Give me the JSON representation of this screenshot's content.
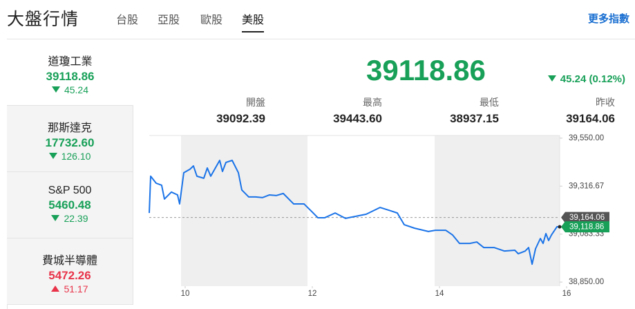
{
  "header": {
    "title": "大盤行情",
    "tabs": [
      "台股",
      "亞股",
      "歐股",
      "美股"
    ],
    "active_tab": 3,
    "more": "更多指數"
  },
  "indices": [
    {
      "name": "道瓊工業",
      "price": "39118.86",
      "change": "45.24",
      "direction": "down"
    },
    {
      "name": "那斯達克",
      "price": "17732.60",
      "change": "126.10",
      "direction": "down"
    },
    {
      "name": "S&P 500",
      "price": "5460.48",
      "change": "22.39",
      "direction": "down"
    },
    {
      "name": "費城半導體",
      "price": "5472.26",
      "change": "51.17",
      "direction": "up"
    }
  ],
  "active_index": 0,
  "quote": {
    "price": "39118.86",
    "change": "45.24 (0.12%)",
    "direction": "down",
    "stats": [
      {
        "label": "開盤",
        "value": "39092.39"
      },
      {
        "label": "最高",
        "value": "39443.60"
      },
      {
        "label": "最低",
        "value": "38937.15"
      },
      {
        "label": "昨收",
        "value": "39164.06"
      }
    ]
  },
  "chart_data": {
    "type": "line",
    "color": "#1a73e8",
    "xlim": [
      9.435,
      15.891
    ],
    "ylim": [
      38830,
      39563
    ],
    "xticks": [
      10,
      12,
      14,
      16
    ],
    "yticks": [
      {
        "value": 38850,
        "label": "38,850.00"
      },
      {
        "value": 39083.33,
        "label": "39,083.33"
      },
      {
        "value": 39316.67,
        "label": "39,316.67"
      },
      {
        "value": 39550,
        "label": "39,550.00"
      }
    ],
    "shaded_x": [
      [
        9.935,
        11.924
      ],
      [
        13.924,
        15.891
      ]
    ],
    "reference": {
      "value": 39164.06,
      "label": "39,164.06"
    },
    "last_price": {
      "value": 39118.86,
      "label": "39,118.86"
    },
    "x": [
      9.435,
      9.457,
      9.543,
      9.63,
      9.674,
      9.783,
      9.88,
      9.913,
      9.978,
      10.076,
      10.13,
      10.185,
      10.293,
      10.348,
      10.402,
      10.543,
      10.587,
      10.641,
      10.739,
      10.837,
      10.891,
      11.0,
      11.109,
      11.217,
      11.326,
      11.435,
      11.543,
      11.707,
      11.87,
      11.978,
      12.087,
      12.196,
      12.359,
      12.522,
      12.685,
      12.848,
      13.065,
      13.228,
      13.337,
      13.446,
      13.609,
      13.826,
      13.935,
      14.098,
      14.207,
      14.315,
      14.478,
      14.587,
      14.696,
      14.859,
      15.022,
      15.185,
      15.239,
      15.348,
      15.402,
      15.457,
      15.511,
      15.587,
      15.63,
      15.674,
      15.717,
      15.761,
      15.848,
      15.891
    ],
    "values": [
      39186,
      39365,
      39331,
      39321,
      39254,
      39288,
      39274,
      39230,
      39382,
      39399,
      39415,
      39365,
      39355,
      39405,
      39365,
      39442,
      39388,
      39432,
      39442,
      39382,
      39298,
      39264,
      39264,
      39261,
      39274,
      39271,
      39281,
      39230,
      39230,
      39197,
      39163,
      39163,
      39186,
      39160,
      39170,
      39180,
      39213,
      39197,
      39186,
      39129,
      39112,
      39096,
      39102,
      39102,
      39079,
      39038,
      39038,
      39045,
      39018,
      39018,
      39001,
      39005,
      38988,
      39001,
      39018,
      38937,
      39012,
      39062,
      39038,
      39086,
      39052,
      39079,
      39119,
      39118.86
    ]
  }
}
